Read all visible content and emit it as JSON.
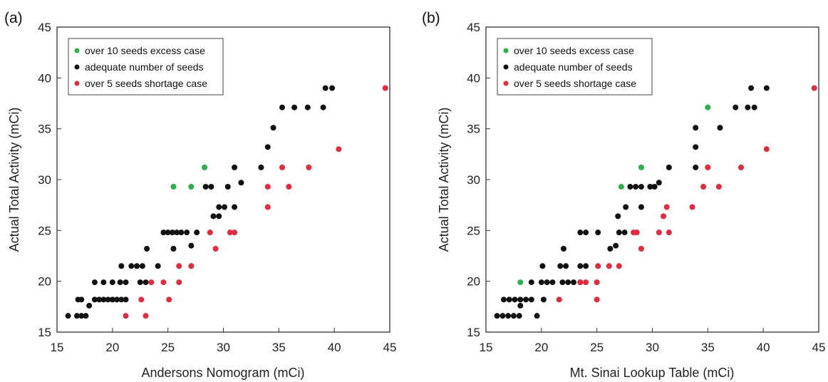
{
  "chart_data": [
    {
      "type": "scatter",
      "panel_label": "(a)",
      "xlabel": "Andersons Nomogram (mCi)",
      "ylabel": "Actual Total Activity (mCi)",
      "xlim": [
        15,
        45
      ],
      "ylim": [
        15,
        45
      ],
      "xticks": [
        "15",
        "20",
        "25",
        "30",
        "35",
        "40",
        "45"
      ],
      "yticks": [
        "15",
        "20",
        "25",
        "30",
        "35",
        "40",
        "45"
      ],
      "legend_position": "top-left",
      "series": [
        {
          "name": "over 10 seeds excess case",
          "color": "#27b34a",
          "points": [
            [
              25.5,
              29.3
            ],
            [
              27.1,
              29.3
            ],
            [
              28.3,
              31.2
            ]
          ]
        },
        {
          "name": "adequate number of seeds",
          "color": "#111111",
          "points": [
            [
              16.0,
              16.6
            ],
            [
              16.8,
              16.6
            ],
            [
              17.2,
              16.6
            ],
            [
              17.6,
              16.6
            ],
            [
              16.9,
              18.2
            ],
            [
              17.2,
              18.2
            ],
            [
              17.9,
              17.6
            ],
            [
              18.4,
              18.2
            ],
            [
              18.8,
              18.2
            ],
            [
              19.2,
              18.2
            ],
            [
              19.6,
              18.2
            ],
            [
              20.0,
              18.2
            ],
            [
              20.4,
              18.2
            ],
            [
              20.8,
              18.2
            ],
            [
              21.2,
              18.2
            ],
            [
              18.4,
              19.9
            ],
            [
              19.2,
              19.9
            ],
            [
              20.0,
              19.9
            ],
            [
              20.7,
              19.9
            ],
            [
              21.2,
              19.9
            ],
            [
              22.5,
              19.9
            ],
            [
              23.0,
              19.9
            ],
            [
              20.8,
              21.5
            ],
            [
              21.7,
              21.5
            ],
            [
              22.2,
              21.5
            ],
            [
              22.7,
              21.5
            ],
            [
              24.1,
              21.5
            ],
            [
              23.1,
              23.2
            ],
            [
              25.5,
              23.2
            ],
            [
              27.1,
              23.5
            ],
            [
              24.6,
              24.8
            ],
            [
              25.0,
              24.8
            ],
            [
              25.4,
              24.8
            ],
            [
              25.8,
              24.8
            ],
            [
              26.2,
              24.8
            ],
            [
              26.7,
              24.8
            ],
            [
              27.6,
              24.8
            ],
            [
              29.1,
              26.4
            ],
            [
              29.6,
              26.4
            ],
            [
              29.6,
              27.3
            ],
            [
              30.1,
              27.3
            ],
            [
              31.0,
              27.3
            ],
            [
              28.4,
              29.3
            ],
            [
              28.9,
              29.3
            ],
            [
              30.4,
              29.3
            ],
            [
              31.6,
              29.7
            ],
            [
              31.0,
              31.2
            ],
            [
              33.4,
              31.2
            ],
            [
              34.0,
              33.2
            ],
            [
              34.5,
              35.1
            ],
            [
              35.3,
              37.1
            ],
            [
              36.4,
              37.1
            ],
            [
              37.6,
              37.1
            ],
            [
              39.0,
              37.1
            ],
            [
              39.2,
              39.0
            ],
            [
              39.8,
              39.0
            ]
          ]
        },
        {
          "name": "over 5 seeds shortage case",
          "color": "#e8283c",
          "points": [
            [
              21.2,
              16.6
            ],
            [
              23.0,
              16.6
            ],
            [
              22.6,
              18.2
            ],
            [
              25.1,
              18.2
            ],
            [
              23.5,
              19.9
            ],
            [
              24.6,
              19.9
            ],
            [
              26.0,
              19.9
            ],
            [
              26.0,
              21.5
            ],
            [
              27.1,
              21.5
            ],
            [
              29.3,
              23.2
            ],
            [
              28.8,
              24.8
            ],
            [
              30.6,
              24.8
            ],
            [
              31.0,
              24.8
            ],
            [
              34.0,
              27.3
            ],
            [
              34.0,
              29.3
            ],
            [
              35.9,
              29.3
            ],
            [
              35.3,
              31.2
            ],
            [
              37.7,
              31.2
            ],
            [
              40.4,
              33.0
            ],
            [
              44.6,
              39.0
            ]
          ]
        }
      ]
    },
    {
      "type": "scatter",
      "panel_label": "(b)",
      "xlabel": "Mt. Sinai Lookup Table (mCi)",
      "ylabel": "Actual Total Activity (mCi)",
      "xlim": [
        15,
        45
      ],
      "ylim": [
        15,
        45
      ],
      "xticks": [
        "15",
        "20",
        "25",
        "30",
        "35",
        "40",
        "45"
      ],
      "yticks": [
        "15",
        "20",
        "25",
        "30",
        "35",
        "40",
        "45"
      ],
      "legend_position": "top-left",
      "series": [
        {
          "name": "over 10 seeds excess case",
          "color": "#27b34a",
          "points": [
            [
              18.1,
              19.9
            ],
            [
              27.2,
              29.3
            ],
            [
              29.0,
              31.2
            ],
            [
              35.0,
              37.1
            ]
          ]
        },
        {
          "name": "adequate number of seeds",
          "color": "#111111",
          "points": [
            [
              16.0,
              16.6
            ],
            [
              16.5,
              16.6
            ],
            [
              17.0,
              16.6
            ],
            [
              17.5,
              16.6
            ],
            [
              18.0,
              16.6
            ],
            [
              19.6,
              16.6
            ],
            [
              16.6,
              18.2
            ],
            [
              17.1,
              18.2
            ],
            [
              17.6,
              18.2
            ],
            [
              18.1,
              18.2
            ],
            [
              18.6,
              18.2
            ],
            [
              19.1,
              18.2
            ],
            [
              18.1,
              17.6
            ],
            [
              20.2,
              18.2
            ],
            [
              19.1,
              19.9
            ],
            [
              20.0,
              19.9
            ],
            [
              20.5,
              19.9
            ],
            [
              21.0,
              19.9
            ],
            [
              21.9,
              19.9
            ],
            [
              22.4,
              19.9
            ],
            [
              22.9,
              19.9
            ],
            [
              23.5,
              19.9
            ],
            [
              20.1,
              21.5
            ],
            [
              21.7,
              21.5
            ],
            [
              22.2,
              21.5
            ],
            [
              23.5,
              21.5
            ],
            [
              24.0,
              21.5
            ],
            [
              22.0,
              23.2
            ],
            [
              23.5,
              24.8
            ],
            [
              24.0,
              24.8
            ],
            [
              25.1,
              24.8
            ],
            [
              27.0,
              24.8
            ],
            [
              27.5,
              24.8
            ],
            [
              26.2,
              23.2
            ],
            [
              26.7,
              23.5
            ],
            [
              26.9,
              26.4
            ],
            [
              27.6,
              27.3
            ],
            [
              29.0,
              27.3
            ],
            [
              28.0,
              29.3
            ],
            [
              28.5,
              29.3
            ],
            [
              29.0,
              29.3
            ],
            [
              29.8,
              29.3
            ],
            [
              30.2,
              29.3
            ],
            [
              30.6,
              29.7
            ],
            [
              31.5,
              31.2
            ],
            [
              33.9,
              31.2
            ],
            [
              33.9,
              33.2
            ],
            [
              33.9,
              35.1
            ],
            [
              36.1,
              35.1
            ],
            [
              37.5,
              37.1
            ],
            [
              38.6,
              37.1
            ],
            [
              39.2,
              37.1
            ],
            [
              38.9,
              39.0
            ],
            [
              40.3,
              39.0
            ]
          ]
        },
        {
          "name": "over 5 seeds shortage case",
          "color": "#e8283c",
          "points": [
            [
              21.6,
              18.2
            ],
            [
              25.0,
              18.2
            ],
            [
              23.5,
              19.9
            ],
            [
              24.0,
              19.9
            ],
            [
              25.0,
              19.9
            ],
            [
              25.1,
              21.5
            ],
            [
              26.1,
              21.5
            ],
            [
              27.0,
              21.5
            ],
            [
              29.0,
              23.2
            ],
            [
              28.3,
              24.8
            ],
            [
              28.6,
              24.8
            ],
            [
              30.6,
              24.8
            ],
            [
              31.5,
              24.8
            ],
            [
              31.0,
              26.4
            ],
            [
              31.3,
              27.3
            ],
            [
              33.6,
              27.3
            ],
            [
              34.6,
              29.3
            ],
            [
              36.0,
              29.3
            ],
            [
              35.0,
              31.2
            ],
            [
              38.0,
              31.2
            ],
            [
              40.3,
              33.0
            ],
            [
              44.6,
              39.0
            ]
          ]
        }
      ]
    }
  ]
}
